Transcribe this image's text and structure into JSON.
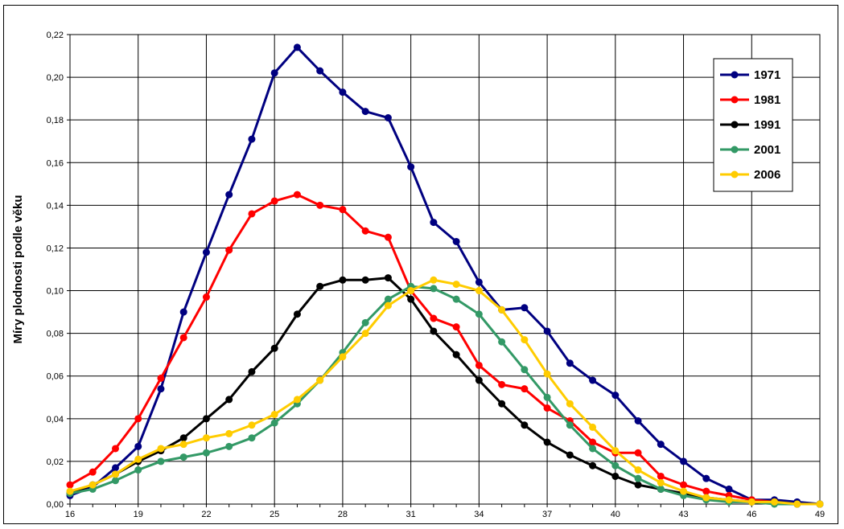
{
  "chart_data": {
    "type": "line",
    "title": "",
    "xlabel": "",
    "ylabel": "Míry plodnosti podle věku",
    "x": [
      16,
      17,
      18,
      19,
      20,
      21,
      22,
      23,
      24,
      25,
      26,
      27,
      28,
      29,
      30,
      31,
      32,
      33,
      34,
      35,
      36,
      37,
      38,
      39,
      40,
      41,
      42,
      43,
      44,
      45,
      46,
      47,
      48,
      49
    ],
    "xticks": [
      "16",
      "19",
      "22",
      "25",
      "28",
      "31",
      "34",
      "37",
      "40",
      "43",
      "46",
      "49"
    ],
    "xtick_values": [
      16,
      19,
      22,
      25,
      28,
      31,
      34,
      37,
      40,
      43,
      46,
      49
    ],
    "xlim": [
      16,
      49
    ],
    "ylim": [
      0,
      0.22
    ],
    "yticks": [
      "0,00",
      "0,02",
      "0,04",
      "0,06",
      "0,08",
      "0,10",
      "0,12",
      "0,14",
      "0,16",
      "0,18",
      "0,20",
      "0,22"
    ],
    "ytick_values": [
      0,
      0.02,
      0.04,
      0.06,
      0.08,
      0.1,
      0.12,
      0.14,
      0.16,
      0.18,
      0.2,
      0.22
    ],
    "grid": true,
    "legend": "top-right",
    "series": [
      {
        "name": "1971",
        "color": "#000080",
        "values": [
          0.004,
          0.008,
          0.017,
          0.027,
          0.054,
          0.09,
          0.118,
          0.145,
          0.171,
          0.202,
          0.214,
          0.203,
          0.193,
          0.184,
          0.181,
          0.158,
          0.132,
          0.123,
          0.104,
          0.091,
          0.092,
          0.081,
          0.066,
          0.058,
          0.051,
          0.039,
          0.028,
          0.02,
          0.012,
          0.007,
          0.002,
          0.002,
          0.001,
          0.0
        ]
      },
      {
        "name": "1981",
        "color": "#ff0000",
        "values": [
          0.009,
          0.015,
          0.026,
          0.04,
          0.059,
          0.078,
          0.097,
          0.119,
          0.136,
          0.142,
          0.145,
          0.14,
          0.138,
          0.128,
          0.125,
          0.1,
          0.087,
          0.083,
          0.065,
          0.056,
          0.054,
          0.045,
          0.039,
          0.029,
          0.024,
          0.024,
          0.013,
          0.009,
          0.006,
          0.004,
          0.002,
          0.001,
          0.0,
          0.0
        ]
      },
      {
        "name": "1991",
        "color": "#000000",
        "values": [
          0.005,
          0.009,
          0.014,
          0.02,
          0.025,
          0.031,
          0.04,
          0.049,
          0.062,
          0.073,
          0.089,
          0.102,
          0.105,
          0.105,
          0.106,
          0.096,
          0.081,
          0.07,
          0.058,
          0.047,
          0.037,
          0.029,
          0.023,
          0.018,
          0.013,
          0.009,
          0.007,
          0.005,
          0.003,
          0.002,
          0.001,
          0.001,
          0.0,
          0.0
        ]
      },
      {
        "name": "2001",
        "color": "#339966",
        "values": [
          0.005,
          0.007,
          0.011,
          0.016,
          0.02,
          0.022,
          0.024,
          0.027,
          0.031,
          0.038,
          0.047,
          0.058,
          0.071,
          0.085,
          0.096,
          0.102,
          0.101,
          0.096,
          0.089,
          0.076,
          0.063,
          0.05,
          0.037,
          0.026,
          0.018,
          0.012,
          0.007,
          0.004,
          0.002,
          0.001,
          0.001,
          0.0,
          0.0,
          0.0
        ]
      },
      {
        "name": "2006",
        "color": "#ffcc00",
        "values": [
          0.006,
          0.009,
          0.014,
          0.021,
          0.026,
          0.028,
          0.031,
          0.033,
          0.037,
          0.042,
          0.049,
          0.058,
          0.069,
          0.08,
          0.093,
          0.1,
          0.105,
          0.103,
          0.1,
          0.091,
          0.077,
          0.061,
          0.047,
          0.036,
          0.025,
          0.016,
          0.01,
          0.006,
          0.003,
          0.002,
          0.001,
          0.001,
          0.0,
          0.0
        ]
      }
    ]
  }
}
